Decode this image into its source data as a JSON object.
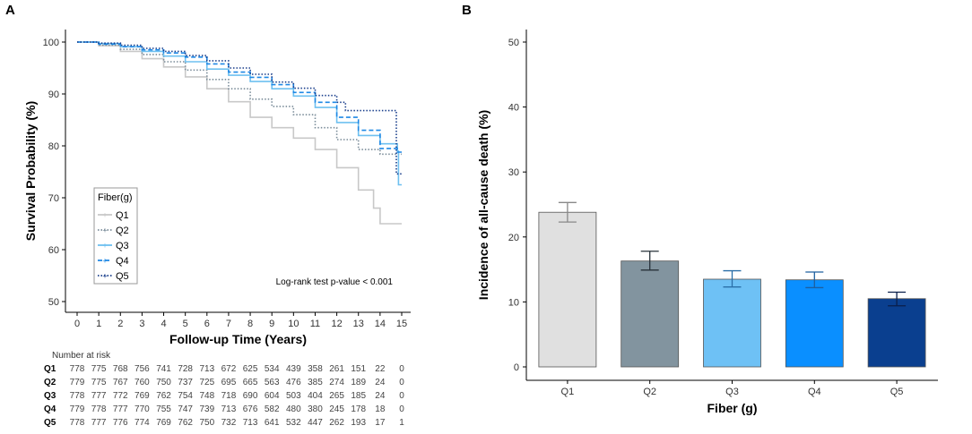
{
  "panels": {
    "a_label": "A",
    "b_label": "B"
  },
  "chart_data": [
    {
      "type": "line",
      "title": "",
      "xlabel": "Follow-up Time (Years)",
      "ylabel": "Survival Probability (%)",
      "xlim": [
        0,
        15
      ],
      "ylim": [
        50,
        100
      ],
      "xticks": [
        "0",
        "1",
        "2",
        "3",
        "4",
        "5",
        "6",
        "7",
        "8",
        "9",
        "10",
        "11",
        "12",
        "13",
        "14",
        "15"
      ],
      "yticks": [
        "50",
        "60",
        "70",
        "80",
        "90",
        "100"
      ],
      "grid": false,
      "legend": {
        "title": "Fiber(g)",
        "position": "bottom-left",
        "entries": [
          "Q1",
          "Q2",
          "Q3",
          "Q4",
          "Q5"
        ]
      },
      "annotation": "Log-rank test p-value < 0.001",
      "series": [
        {
          "name": "Q1",
          "color": "#c8c8c8",
          "dash": "solid",
          "points": [
            [
              0,
              100
            ],
            [
              1,
              99.3
            ],
            [
              2,
              98.2
            ],
            [
              3,
              96.8
            ],
            [
              4,
              95.2
            ],
            [
              5,
              93.3
            ],
            [
              6,
              91
            ],
            [
              7,
              88.5
            ],
            [
              8,
              85.5
            ],
            [
              9,
              83.5
            ],
            [
              10,
              81.5
            ],
            [
              11,
              79.3
            ],
            [
              12,
              75.8
            ],
            [
              13,
              71.5
            ],
            [
              13.7,
              68
            ],
            [
              14,
              65
            ],
            [
              15,
              65
            ]
          ]
        },
        {
          "name": "Q2",
          "color": "#7a8c99",
          "dash": "dotted",
          "points": [
            [
              0,
              100
            ],
            [
              1,
              99.4
            ],
            [
              2,
              98.6
            ],
            [
              3,
              97.6
            ],
            [
              4,
              96.2
            ],
            [
              5,
              94.6
            ],
            [
              6,
              92.8
            ],
            [
              7,
              91
            ],
            [
              8,
              89
            ],
            [
              9,
              87.6
            ],
            [
              10,
              86
            ],
            [
              11,
              83.5
            ],
            [
              12,
              81.2
            ],
            [
              13,
              79.3
            ],
            [
              14,
              78.4
            ],
            [
              15,
              78.4
            ]
          ]
        },
        {
          "name": "Q3",
          "color": "#6ec0f0",
          "dash": "solid",
          "points": [
            [
              0,
              100
            ],
            [
              1,
              99.7
            ],
            [
              2,
              99.1
            ],
            [
              3,
              98.2
            ],
            [
              4,
              97.3
            ],
            [
              5,
              96.2
            ],
            [
              6,
              94.8
            ],
            [
              7,
              93.6
            ],
            [
              8,
              92.4
            ],
            [
              9,
              91
            ],
            [
              10,
              89.6
            ],
            [
              11,
              87.4
            ],
            [
              12,
              84.5
            ],
            [
              13,
              82
            ],
            [
              14,
              80.4
            ],
            [
              14.8,
              79
            ],
            [
              14.85,
              72.5
            ],
            [
              15,
              72.5
            ]
          ]
        },
        {
          "name": "Q4",
          "color": "#1e88e5",
          "dash": "dashed",
          "points": [
            [
              0,
              100
            ],
            [
              1,
              99.6
            ],
            [
              2,
              99.1
            ],
            [
              3,
              98.5
            ],
            [
              4,
              97.9
            ],
            [
              5,
              97.1
            ],
            [
              6,
              95.8
            ],
            [
              7,
              94.2
            ],
            [
              8,
              93.2
            ],
            [
              9,
              91.8
            ],
            [
              10,
              90.3
            ],
            [
              11,
              88.4
            ],
            [
              12,
              85.5
            ],
            [
              13,
              83
            ],
            [
              14,
              79.5
            ],
            [
              14.8,
              78.8
            ],
            [
              15,
              78.8
            ]
          ]
        },
        {
          "name": "Q5",
          "color": "#1a3f8c",
          "dash": "dotted",
          "points": [
            [
              0,
              100
            ],
            [
              1,
              99.8
            ],
            [
              2,
              99.4
            ],
            [
              3,
              98.8
            ],
            [
              4,
              98.2
            ],
            [
              5,
              97.4
            ],
            [
              6,
              96.4
            ],
            [
              7,
              95
            ],
            [
              8,
              93.8
            ],
            [
              9,
              92.3
            ],
            [
              10,
              91.1
            ],
            [
              11,
              89.7
            ],
            [
              12,
              88.4
            ],
            [
              12.4,
              86.8
            ],
            [
              14.7,
              86.8
            ],
            [
              14.75,
              74.6
            ],
            [
              15,
              74.6
            ]
          ]
        }
      ],
      "risk_table": {
        "title": "Number at risk",
        "rows": [
          {
            "label": "Q1",
            "values": [
              "778",
              "775",
              "768",
              "756",
              "741",
              "728",
              "713",
              "672",
              "625",
              "534",
              "439",
              "358",
              "261",
              "151",
              "22",
              "0"
            ]
          },
          {
            "label": "Q2",
            "values": [
              "779",
              "775",
              "767",
              "760",
              "750",
              "737",
              "725",
              "695",
              "665",
              "563",
              "476",
              "385",
              "274",
              "189",
              "24",
              "0"
            ]
          },
          {
            "label": "Q3",
            "values": [
              "778",
              "777",
              "772",
              "769",
              "762",
              "754",
              "748",
              "718",
              "690",
              "604",
              "503",
              "404",
              "265",
              "185",
              "24",
              "0"
            ]
          },
          {
            "label": "Q4",
            "values": [
              "779",
              "778",
              "777",
              "770",
              "755",
              "747",
              "739",
              "713",
              "676",
              "582",
              "480",
              "380",
              "245",
              "178",
              "18",
              "0"
            ]
          },
          {
            "label": "Q5",
            "values": [
              "778",
              "777",
              "776",
              "774",
              "769",
              "762",
              "750",
              "732",
              "713",
              "641",
              "532",
              "447",
              "262",
              "193",
              "17",
              "1"
            ]
          }
        ]
      }
    },
    {
      "type": "bar",
      "title": "",
      "xlabel": "Fiber (g)",
      "ylabel": "Incidence of all-cause death (%)",
      "ylim": [
        0,
        50
      ],
      "yticks": [
        "0",
        "10",
        "20",
        "30",
        "40",
        "50"
      ],
      "categories": [
        "Q1",
        "Q2",
        "Q3",
        "Q4",
        "Q5"
      ],
      "values": [
        23.8,
        16.3,
        13.5,
        13.4,
        10.5
      ],
      "err_low": [
        22.3,
        14.9,
        12.3,
        12.2,
        9.4
      ],
      "err_high": [
        25.3,
        17.8,
        14.8,
        14.6,
        11.5
      ],
      "colors": [
        "#e0e0e0",
        "#82949f",
        "#6ec1f5",
        "#0a8fff",
        "#0a3f8f"
      ],
      "error_colors": [
        "#888888",
        "#28323a",
        "#2a6fa8",
        "#1d5f9f",
        "#0a1f4a"
      ],
      "grid": false
    }
  ]
}
